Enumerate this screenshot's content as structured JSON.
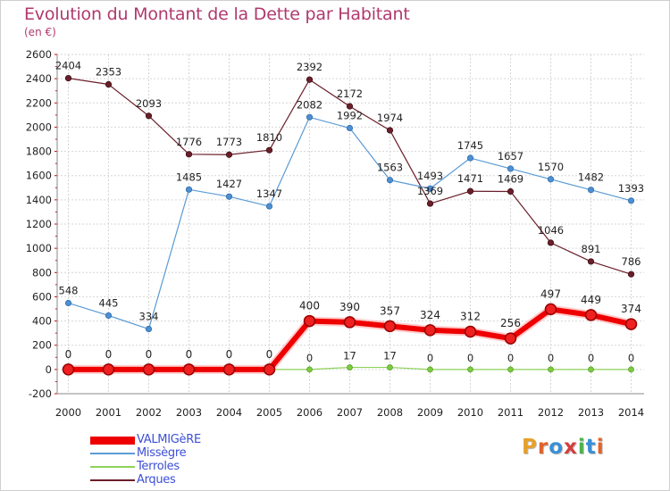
{
  "title": "Evolution du Montant de la Dette par Habitant",
  "unit": "(en €)",
  "logo_text": "Proxiti",
  "chart_data": {
    "type": "line",
    "title": "Evolution du Montant de la Dette par Habitant",
    "subtitle": "(en €)",
    "x": [
      2000,
      2001,
      2002,
      2003,
      2004,
      2005,
      2006,
      2007,
      2008,
      2009,
      2010,
      2011,
      2012,
      2013,
      2014
    ],
    "ylim": [
      -200,
      2600
    ],
    "yticks": [
      -200,
      0,
      200,
      400,
      600,
      800,
      1000,
      1200,
      1400,
      1600,
      1800,
      2000,
      2200,
      2400,
      2600
    ],
    "grid": true,
    "legend_position": "bottom-left",
    "series": [
      {
        "name": "VALMIGèRE",
        "color": "#ee0000",
        "values": [
          0,
          0,
          0,
          0,
          0,
          0,
          400,
          390,
          357,
          324,
          312,
          256,
          497,
          449,
          374
        ]
      },
      {
        "name": "Missègre",
        "color": "#5b9bd5",
        "values": [
          548,
          445,
          334,
          1485,
          1427,
          1347,
          2082,
          1992,
          1563,
          1493,
          1745,
          1657,
          1570,
          1482,
          1393
        ]
      },
      {
        "name": "Terroles",
        "color": "#8ed35a",
        "values": [
          0,
          0,
          0,
          0,
          0,
          0,
          0,
          17,
          17,
          0,
          0,
          0,
          0,
          0,
          0
        ]
      },
      {
        "name": "Arques",
        "color": "#6b1f2a",
        "values": [
          2404,
          2353,
          2093,
          1776,
          1773,
          1810,
          2392,
          2172,
          1974,
          1369,
          1471,
          1469,
          1046,
          891,
          786
        ]
      }
    ]
  }
}
